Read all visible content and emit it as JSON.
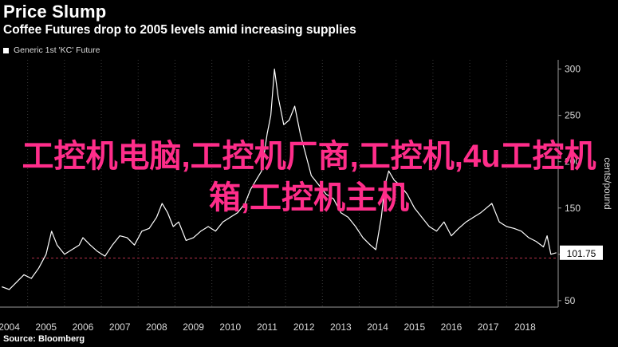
{
  "title": "Price Slump",
  "subtitle": "Coffee Futures drop to 2005 levels amid increasing supplies",
  "legend": "Generic 1st 'KC' Future",
  "source": "Source: Bloomberg",
  "overlay_text": "工控机电脑,工控机厂商,工控机,4u工控机箱,工控机主机",
  "colors": {
    "line": "#ffffff",
    "overlay": "#ff2d8a",
    "reference_line": "#b0304a",
    "background": "#000000"
  },
  "chart_data": {
    "type": "line",
    "title": "Price Slump",
    "xlabel": "",
    "ylabel": "cents/pound",
    "ylim": [
      43,
      310
    ],
    "xlim": [
      2003.75,
      2018.9
    ],
    "x_ticks": [
      "2004",
      "2005",
      "2006",
      "2007",
      "2008",
      "2009",
      "2010",
      "2011",
      "2012",
      "2013",
      "2014",
      "2015",
      "2016",
      "2017",
      "2018"
    ],
    "y_ticks": [
      50,
      100,
      150,
      200,
      250,
      300
    ],
    "y_axis_side": "right",
    "grid": "vertical dotted",
    "legend": "top-left",
    "last_value": 101.75,
    "last_value_label": "101.75",
    "reference_line": 96,
    "series": [
      {
        "name": "Generic 1st 'KC' Future",
        "x": [
          2003.8,
          2004.0,
          2004.2,
          2004.4,
          2004.6,
          2004.8,
          2005.0,
          2005.15,
          2005.3,
          2005.5,
          2005.7,
          2005.9,
          2006.0,
          2006.2,
          2006.4,
          2006.6,
          2006.8,
          2007.0,
          2007.2,
          2007.4,
          2007.6,
          2007.8,
          2008.0,
          2008.15,
          2008.3,
          2008.45,
          2008.6,
          2008.8,
          2009.0,
          2009.2,
          2009.4,
          2009.6,
          2009.8,
          2010.0,
          2010.2,
          2010.4,
          2010.55,
          2010.7,
          2010.85,
          2011.0,
          2011.1,
          2011.2,
          2011.3,
          2011.45,
          2011.6,
          2011.75,
          2011.9,
          2012.0,
          2012.2,
          2012.4,
          2012.6,
          2012.8,
          2013.0,
          2013.2,
          2013.4,
          2013.6,
          2013.8,
          2013.95,
          2014.1,
          2014.2,
          2014.3,
          2014.45,
          2014.6,
          2014.8,
          2015.0,
          2015.2,
          2015.4,
          2015.6,
          2015.8,
          2016.0,
          2016.2,
          2016.4,
          2016.6,
          2016.8,
          2016.95,
          2017.1,
          2017.3,
          2017.5,
          2017.7,
          2017.9,
          2018.1,
          2018.3,
          2018.5,
          2018.6,
          2018.7,
          2018.85
        ],
        "y": [
          65,
          62,
          70,
          78,
          74,
          85,
          100,
          125,
          110,
          100,
          105,
          110,
          118,
          110,
          103,
          98,
          110,
          120,
          118,
          110,
          125,
          128,
          140,
          155,
          145,
          130,
          135,
          115,
          118,
          125,
          130,
          125,
          135,
          140,
          145,
          155,
          170,
          180,
          190,
          230,
          250,
          300,
          270,
          240,
          245,
          260,
          230,
          215,
          185,
          175,
          165,
          160,
          145,
          140,
          130,
          118,
          110,
          105,
          140,
          175,
          190,
          180,
          175,
          165,
          150,
          140,
          130,
          125,
          135,
          120,
          128,
          135,
          140,
          145,
          150,
          155,
          135,
          130,
          128,
          125,
          118,
          114,
          108,
          120,
          100,
          101.75
        ]
      }
    ]
  }
}
